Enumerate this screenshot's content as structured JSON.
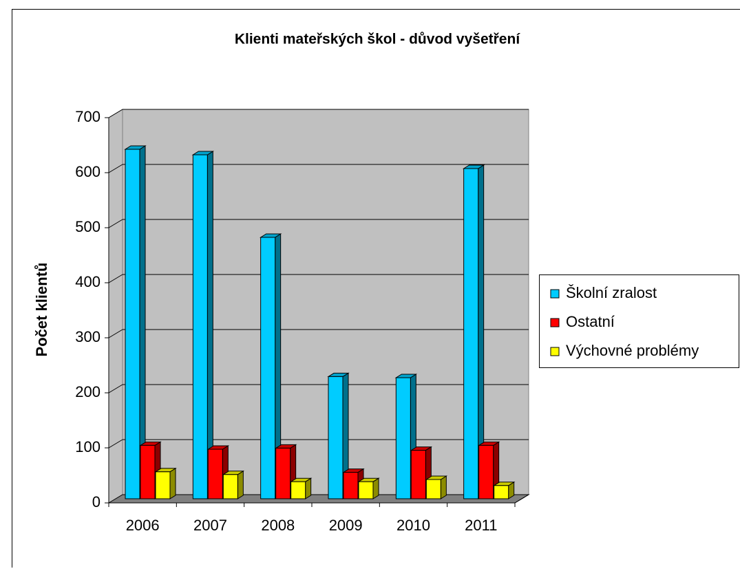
{
  "chart_data": {
    "type": "bar3d",
    "title": "Klienti mateřských škol - důvod vyšetření",
    "ylabel": "Počet klientů",
    "categories": [
      "2006",
      "2007",
      "2008",
      "2009",
      "2010",
      "2011"
    ],
    "series": [
      {
        "name": "Školní zralost",
        "color": "#00ccff",
        "values": [
          635,
          625,
          475,
          222,
          220,
          600
        ]
      },
      {
        "name": "Ostatní",
        "color": "#ff0000",
        "values": [
          97,
          90,
          92,
          48,
          88,
          97
        ]
      },
      {
        "name": "Výchovné problémy",
        "color": "#ffff00",
        "values": [
          49,
          44,
          31,
          31,
          35,
          24
        ]
      }
    ],
    "ylim": [
      0,
      700
    ],
    "yticks": [
      0,
      100,
      200,
      300,
      400,
      500,
      600,
      700
    ],
    "grid": true,
    "legend": "right"
  }
}
